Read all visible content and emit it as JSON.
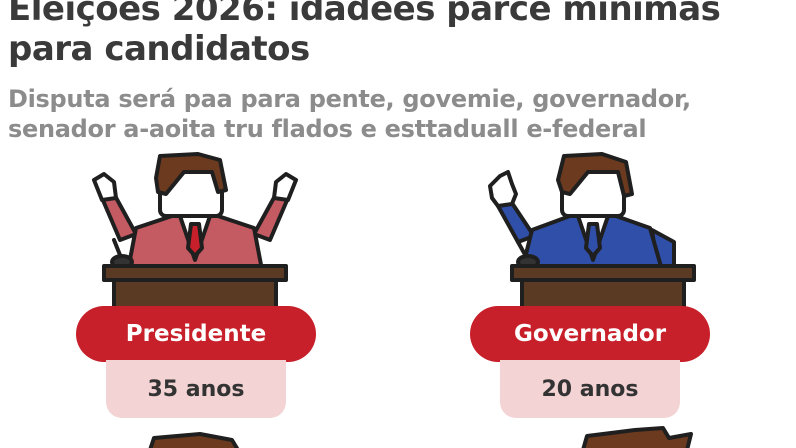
{
  "header": {
    "title_line1": "Eleições 2026: idadees parce minimas",
    "title_line2": "para candidatos",
    "subtitle_line1": "Disputa será paa para pente, govemie, governador,",
    "subtitle_line2": "senador a-aoita tru flados e esttaduall e-federal"
  },
  "cards": [
    {
      "position": "Presidente",
      "age": "35 anos",
      "suit_color": "#c45a62"
    },
    {
      "position": "Governador",
      "age": "20 anos",
      "suit_color": "#2f4fa8"
    }
  ],
  "colors": {
    "accent_red": "#c8202a",
    "age_bg": "#f3d3d4",
    "podium": "#5a3a22",
    "hair": "#6b3a1f"
  }
}
